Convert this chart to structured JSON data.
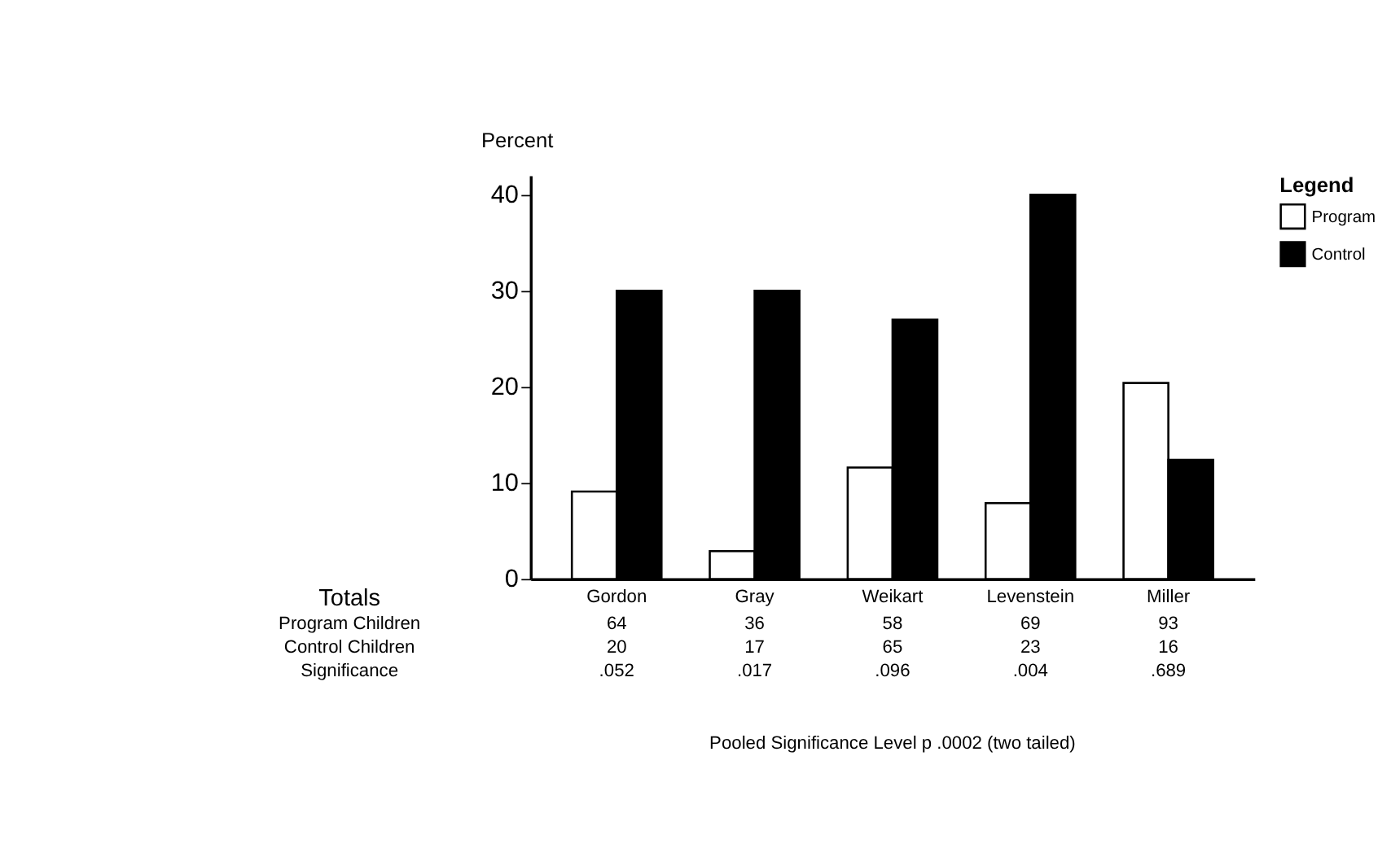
{
  "chart_data": {
    "type": "bar",
    "ylabel": "Percent",
    "legend_title": "Legend",
    "categories": [
      "Gordon",
      "Gray",
      "Weikart",
      "Levenstein",
      "Miller"
    ],
    "series": [
      {
        "name": "Program",
        "color": "#ffffff",
        "values": [
          9.1,
          2.9,
          11.6,
          7.9,
          20.4
        ]
      },
      {
        "name": "Control",
        "color": "#000000",
        "values": [
          30,
          30,
          27,
          40,
          12.4
        ]
      }
    ],
    "ylim": [
      0,
      42
    ],
    "yticks": [
      0,
      10,
      20,
      30,
      40
    ],
    "grid": false,
    "legend": "top right",
    "annotations": [
      "Totals",
      "Program Children",
      "64",
      "36",
      "58",
      "69",
      "93",
      "Control Children",
      "20",
      "17",
      "65",
      "23",
      "16",
      "Significance",
      ".052",
      ".017",
      ".096",
      ".004",
      ".689",
      "Pooled Significance Level p  .0002 (two tailed)"
    ]
  }
}
